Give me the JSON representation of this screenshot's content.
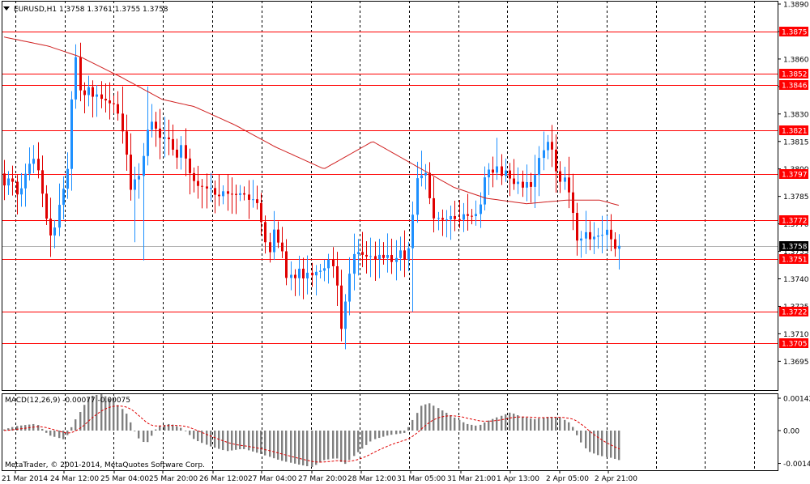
{
  "chart": {
    "symbol_header": "EURUSD,H1  1.3758 1.3761 1.3755 1.3758",
    "dropdown_icon": "triangle-down-icon",
    "price_min": 1.3685,
    "price_max": 1.389,
    "price_ticks": [
      "1.3890",
      "1.3875",
      "1.3860",
      "1.3845",
      "1.3830",
      "1.3815",
      "1.3800",
      "1.3785",
      "1.3770",
      "1.3755",
      "1.3740",
      "1.3725",
      "1.3710",
      "1.3695"
    ],
    "levels": [
      {
        "label": "1.3875",
        "value": 1.3875
      },
      {
        "label": "1.3852",
        "value": 1.3852
      },
      {
        "label": "1.3846",
        "value": 1.3846
      },
      {
        "label": "1.3821",
        "value": 1.3821
      },
      {
        "label": "1.3797",
        "value": 1.3797
      },
      {
        "label": "1.3772",
        "value": 1.3772
      },
      {
        "label": "1.3751",
        "value": 1.3751
      },
      {
        "label": "1.3722",
        "value": 1.3722
      },
      {
        "label": "1.3705",
        "value": 1.3705
      }
    ],
    "current_price": {
      "label": "1.3758",
      "value": 1.3758
    },
    "level_color": "#ff0000",
    "bull_color": "#1e90ff",
    "bear_color": "#e00000",
    "ma_color": "#d02020"
  },
  "macd": {
    "label": "MACD(12,26,9) -0.00077 -0.00075",
    "ticks": [
      "0.00142",
      "0.00",
      "-0.00144"
    ],
    "min": -0.00144,
    "max": 0.00142,
    "bar_color": "#808080",
    "signal_color": "#e00000",
    "copyright": "MetaTrader, © 2001-2014, MetaQuotes Software Corp."
  },
  "time_axis": [
    "21 Mar 2014",
    "24 Mar 12:00",
    "25 Mar 04:00",
    "25 Mar 20:00",
    "26 Mar 12:00",
    "27 Mar 04:00",
    "27 Mar 20:00",
    "28 Mar 12:00",
    "31 Mar 05:00",
    "31 Mar 21:00",
    "1 Apr 13:00",
    "2 Apr 05:00",
    "2 Apr 21:00"
  ]
}
